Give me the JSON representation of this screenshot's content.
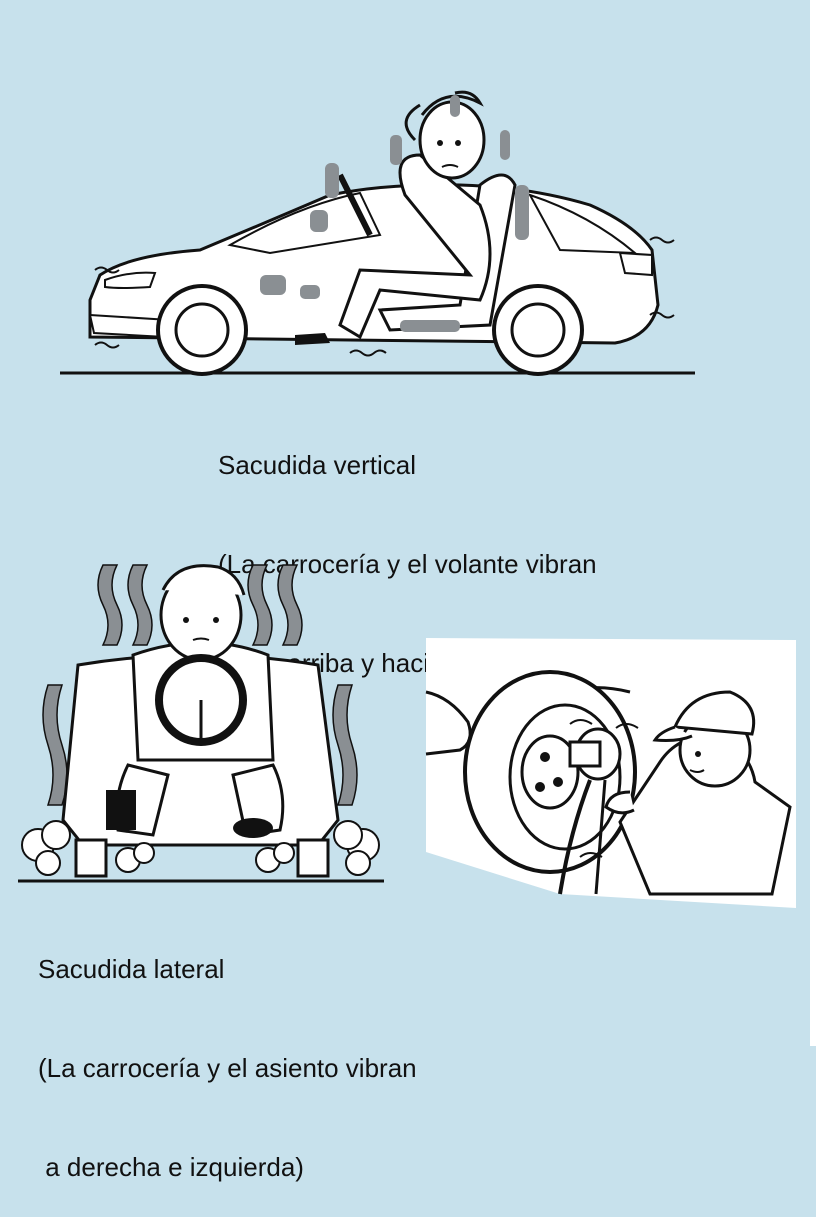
{
  "colors": {
    "background": "#c7e1ec",
    "vibration_gray": "#8a8f93",
    "ink": "#111111"
  },
  "panels": {
    "vertical": {
      "caption_line1": "Sacudida vertical",
      "caption_line2": "(La carrocería y el volante vibran",
      "caption_line3": "hacia arriba y hacia abajo)"
    },
    "lateral": {
      "caption_line1": "Sacudida lateral",
      "caption_line2": "(La carrocería y el asiento vibran",
      "caption_line3": " a derecha e izquierda)"
    },
    "wheel_balance": {}
  }
}
